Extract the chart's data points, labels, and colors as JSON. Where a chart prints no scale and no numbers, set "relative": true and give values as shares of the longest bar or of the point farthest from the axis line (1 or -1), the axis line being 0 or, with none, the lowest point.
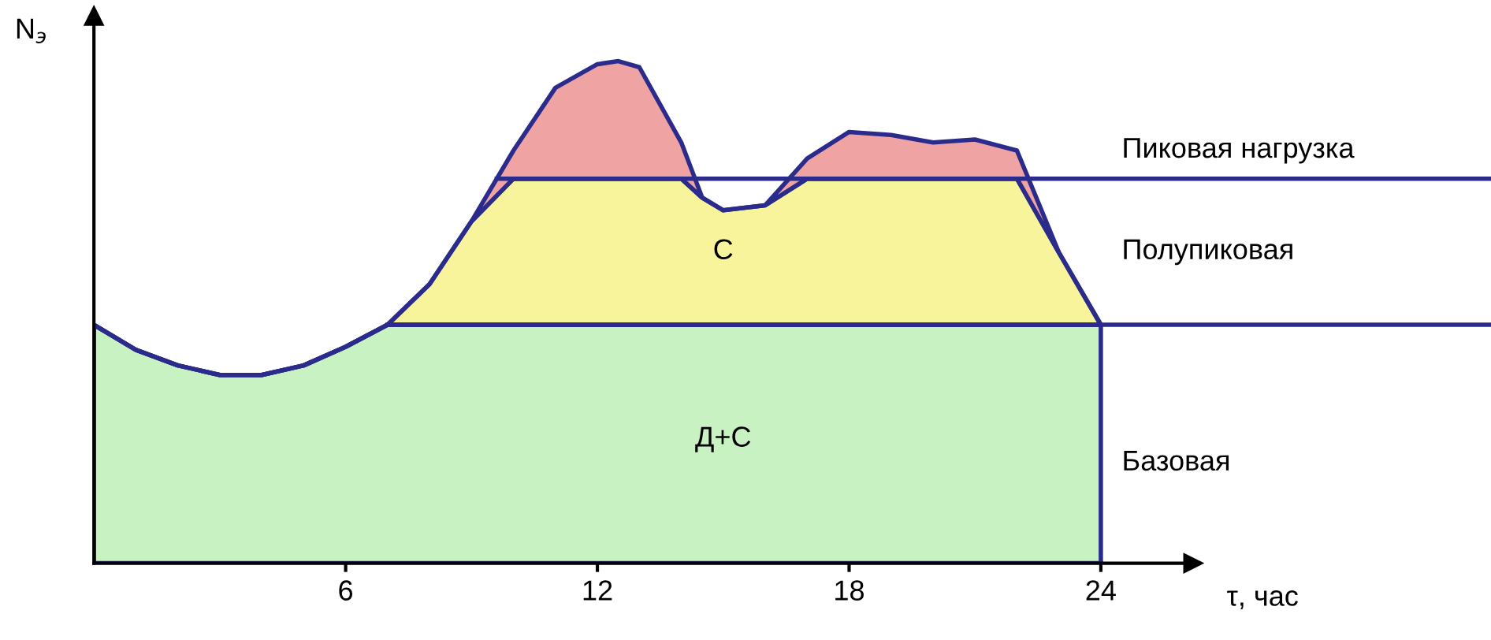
{
  "chart_data": {
    "type": "area",
    "stacked": true,
    "relative": true,
    "ylabel": "N$_{э}$",
    "xlabel": "τ, час",
    "x": [
      0,
      1,
      2,
      3,
      4,
      5,
      6,
      7,
      8,
      9,
      10,
      11,
      12,
      12.5,
      13,
      14,
      14.5,
      15,
      16,
      17,
      18,
      19,
      20,
      21,
      22,
      23,
      24
    ],
    "xlim": [
      0,
      33.3
    ],
    "xticks": [
      6,
      12,
      18,
      24
    ],
    "series": [
      {
        "color": "#c8f2c2",
        "values": [
          0.475,
          0.425,
          0.394,
          0.375,
          0.375,
          0.394,
          0.431,
          0.475,
          0.475,
          0.475,
          0.475,
          0.475,
          0.475,
          0.475,
          0.475,
          0.475,
          0.475,
          0.475,
          0.475,
          0.475,
          0.475,
          0.475,
          0.475,
          0.475,
          0.475,
          0.475,
          0.475
        ]
      },
      {
        "color": "#f8f49c",
        "values": [
          0,
          0,
          0,
          0,
          0,
          0,
          0,
          0,
          0.081,
          0.206,
          0.291,
          0.291,
          0.291,
          0.291,
          0.291,
          0.291,
          0.253,
          0.228,
          0.238,
          0.291,
          0.291,
          0.291,
          0.291,
          0.291,
          0.291,
          0.144,
          0
        ]
      },
      {
        "color": "#f0a3a3",
        "values": [
          0,
          0,
          0,
          0,
          0,
          0,
          0,
          0,
          0,
          0,
          0.056,
          0.181,
          0.228,
          0.234,
          0.222,
          0.072,
          0,
          0,
          0,
          0.04,
          0.093,
          0.087,
          0.072,
          0.078,
          0.056,
          0,
          0
        ]
      }
    ],
    "ref_lines": [
      {
        "axis": "y",
        "value": 0.766,
        "label": "Пиковая нагрузка",
        "color": "#2b2b8c"
      },
      {
        "axis": "y",
        "value": 0.475,
        "color": "#2b2b8c"
      }
    ],
    "annotations": [
      "С",
      "Д+С",
      "Полупиковая",
      "Базовая"
    ]
  }
}
